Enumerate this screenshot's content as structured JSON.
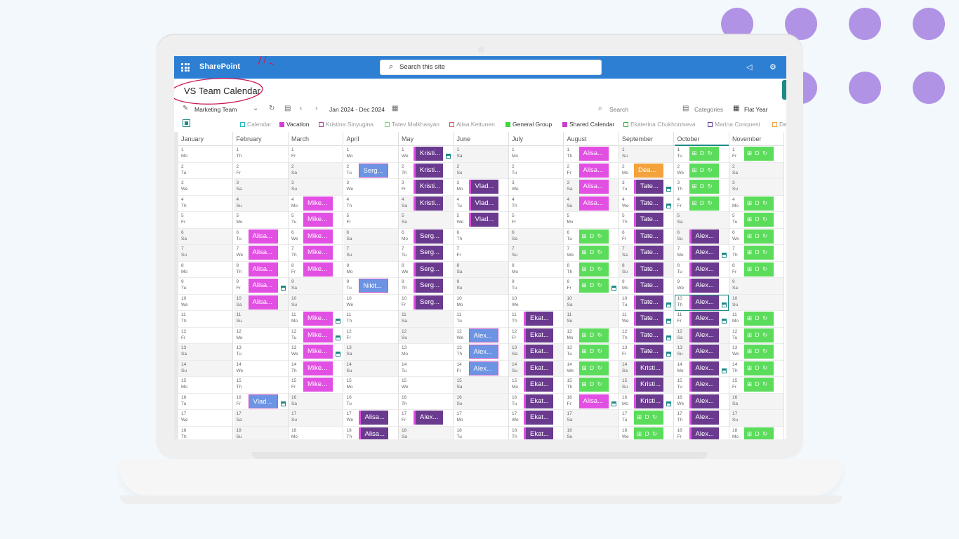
{
  "header": {
    "app_name": "SharePoint",
    "search_placeholder": "Search this site"
  },
  "page": {
    "title": "VS Team Calendar"
  },
  "toolbar": {
    "calendar_name": "Marketing Team",
    "date_range": "Jan 2024 - Dec 2024",
    "search_label": "Search",
    "categories_label": "Categories",
    "view_label": "Flat Year"
  },
  "legend": [
    {
      "label": "Calendar",
      "color": "#20b8c8",
      "filled": false
    },
    {
      "label": "Vacation",
      "color": "#d13fd6",
      "filled": true
    },
    {
      "label": "Kristina Sinyugina",
      "color": "#a540a8",
      "filled": false
    },
    {
      "label": "Tatev Malkhasyan",
      "color": "#7ad97a",
      "filled": false
    },
    {
      "label": "Alisa Kettunen",
      "color": "#d85a6a",
      "filled": false
    },
    {
      "label": "General Group",
      "color": "#3dd63d",
      "filled": true
    },
    {
      "label": "Shared Calendar",
      "color": "#c53fd0",
      "filled": true
    },
    {
      "label": "Ekaterina Chukhontseva",
      "color": "#3aaf3a",
      "filled": false
    },
    {
      "label": "Marina Conquest",
      "color": "#5a3fa0",
      "filled": false
    },
    {
      "label": "De",
      "color": "#f0a040",
      "filled": false
    }
  ],
  "months": [
    "January",
    "February",
    "March",
    "April",
    "May",
    "June",
    "July",
    "August",
    "September",
    "October",
    "November"
  ],
  "active_month": "October",
  "highlight_day": {
    "month": "October",
    "day": 10
  },
  "weekday_labels": [
    "Mo",
    "Tu",
    "We",
    "Th",
    "Fr",
    "Sa",
    "Su"
  ],
  "month_first_weekday": [
    0,
    3,
    4,
    0,
    2,
    5,
    0,
    3,
    6,
    1,
    4
  ],
  "colors": {
    "pink": "#e24fe3",
    "purple": "#6a3a8e",
    "blue": "#6d93e3",
    "green": "#5bdc5b",
    "orange": "#f4a23b"
  },
  "icon_text": "⊞ D ↻",
  "events": [
    {
      "m": 4,
      "d": 1,
      "label": "Kristi...",
      "c": "purple",
      "cal": true
    },
    {
      "m": 4,
      "d": 2,
      "label": "Kristi...",
      "c": "purple"
    },
    {
      "m": 4,
      "d": 3,
      "label": "Kristi...",
      "c": "purple"
    },
    {
      "m": 4,
      "d": 4,
      "label": "Kristi...",
      "c": "purple"
    },
    {
      "m": 4,
      "d": 6,
      "label": "Serg...",
      "c": "purple"
    },
    {
      "m": 4,
      "d": 7,
      "label": "Serg...",
      "c": "purple"
    },
    {
      "m": 4,
      "d": 8,
      "label": "Serg...",
      "c": "purple"
    },
    {
      "m": 4,
      "d": 9,
      "label": "Serg...",
      "c": "purple"
    },
    {
      "m": 4,
      "d": 10,
      "label": "Serg...",
      "c": "purple"
    },
    {
      "m": 4,
      "d": 17,
      "label": "Alex...",
      "c": "purple"
    },
    {
      "m": 3,
      "d": 2,
      "label": "Serg...",
      "c": "blue"
    },
    {
      "m": 3,
      "d": 9,
      "label": "Nikit...",
      "c": "blue"
    },
    {
      "m": 3,
      "d": 17,
      "label": "Alisa...",
      "c": "purple"
    },
    {
      "m": 3,
      "d": 18,
      "label": "Alisa...",
      "c": "purple"
    },
    {
      "m": 5,
      "d": 3,
      "label": "Vlad...",
      "c": "purple"
    },
    {
      "m": 5,
      "d": 4,
      "label": "Vlad...",
      "c": "purple"
    },
    {
      "m": 5,
      "d": 5,
      "label": "Vlad...",
      "c": "purple"
    },
    {
      "m": 5,
      "d": 12,
      "label": "Alex...",
      "c": "blue"
    },
    {
      "m": 5,
      "d": 13,
      "label": "Alex...",
      "c": "blue"
    },
    {
      "m": 5,
      "d": 14,
      "label": "Alex...",
      "c": "blue"
    },
    {
      "m": 6,
      "d": 11,
      "label": "Ekat...",
      "c": "purple"
    },
    {
      "m": 6,
      "d": 12,
      "label": "Ekat...",
      "c": "purple"
    },
    {
      "m": 6,
      "d": 13,
      "label": "Ekat...",
      "c": "purple"
    },
    {
      "m": 6,
      "d": 14,
      "label": "Ekat...",
      "c": "purple"
    },
    {
      "m": 6,
      "d": 15,
      "label": "Ekat...",
      "c": "purple"
    },
    {
      "m": 6,
      "d": 16,
      "label": "Ekat...",
      "c": "purple"
    },
    {
      "m": 6,
      "d": 17,
      "label": "Ekat...",
      "c": "purple"
    },
    {
      "m": 6,
      "d": 18,
      "label": "Ekat...",
      "c": "purple"
    },
    {
      "m": 1,
      "d": 6,
      "label": "Alisa...",
      "c": "pink"
    },
    {
      "m": 1,
      "d": 7,
      "label": "Alisa...",
      "c": "pink"
    },
    {
      "m": 1,
      "d": 8,
      "label": "Alisa...",
      "c": "pink"
    },
    {
      "m": 1,
      "d": 9,
      "label": "Alisa...",
      "c": "pink",
      "cal": true
    },
    {
      "m": 1,
      "d": 10,
      "label": "Alisa...",
      "c": "pink"
    },
    {
      "m": 1,
      "d": 16,
      "label": "Vlad...",
      "c": "blue",
      "cal": true
    },
    {
      "m": 2,
      "d": 4,
      "label": "Mike...",
      "c": "pink"
    },
    {
      "m": 2,
      "d": 5,
      "label": "Mike...",
      "c": "pink"
    },
    {
      "m": 2,
      "d": 6,
      "label": "Mike...",
      "c": "pink"
    },
    {
      "m": 2,
      "d": 7,
      "label": "Mike...",
      "c": "pink"
    },
    {
      "m": 2,
      "d": 8,
      "label": "Mike...",
      "c": "pink"
    },
    {
      "m": 2,
      "d": 11,
      "label": "Mike...",
      "c": "pink",
      "cal": true
    },
    {
      "m": 2,
      "d": 12,
      "label": "Mike...",
      "c": "pink",
      "cal": true
    },
    {
      "m": 2,
      "d": 13,
      "label": "Mike...",
      "c": "pink",
      "cal": true
    },
    {
      "m": 2,
      "d": 14,
      "label": "Mike...",
      "c": "pink"
    },
    {
      "m": 2,
      "d": 15,
      "label": "Mike...",
      "c": "pink"
    },
    {
      "m": 7,
      "d": 1,
      "label": "Alisa...",
      "c": "pink"
    },
    {
      "m": 7,
      "d": 2,
      "label": "Alisa...",
      "c": "pink"
    },
    {
      "m": 7,
      "d": 3,
      "label": "Alisa...",
      "c": "pink"
    },
    {
      "m": 7,
      "d": 4,
      "label": "Alisa...",
      "c": "pink"
    },
    {
      "m": 7,
      "d": 6,
      "icon": true,
      "c": "green"
    },
    {
      "m": 7,
      "d": 7,
      "icon": true,
      "c": "green"
    },
    {
      "m": 7,
      "d": 8,
      "icon": true,
      "c": "green"
    },
    {
      "m": 7,
      "d": 9,
      "icon": true,
      "c": "green",
      "cal": true
    },
    {
      "m": 7,
      "d": 12,
      "icon": true,
      "c": "green"
    },
    {
      "m": 7,
      "d": 13,
      "icon": true,
      "c": "green"
    },
    {
      "m": 7,
      "d": 14,
      "icon": true,
      "c": "green"
    },
    {
      "m": 7,
      "d": 15,
      "icon": true,
      "c": "green"
    },
    {
      "m": 7,
      "d": 16,
      "label": "Alisa...",
      "c": "pink",
      "cal": true
    },
    {
      "m": 8,
      "d": 2,
      "label": "Dea...",
      "c": "orange"
    },
    {
      "m": 8,
      "d": 3,
      "label": "Tate...",
      "c": "purple",
      "cal": true
    },
    {
      "m": 8,
      "d": 4,
      "label": "Tate...",
      "c": "purple",
      "cal": true
    },
    {
      "m": 8,
      "d": 5,
      "label": "Tate...",
      "c": "purple"
    },
    {
      "m": 8,
      "d": 6,
      "label": "Tate...",
      "c": "purple"
    },
    {
      "m": 8,
      "d": 7,
      "label": "Tate...",
      "c": "purple"
    },
    {
      "m": 8,
      "d": 8,
      "label": "Tate...",
      "c": "purple"
    },
    {
      "m": 8,
      "d": 9,
      "label": "Tate...",
      "c": "purple"
    },
    {
      "m": 8,
      "d": 10,
      "label": "Tate...",
      "c": "purple",
      "cal": true
    },
    {
      "m": 8,
      "d": 11,
      "label": "Tate...",
      "c": "purple",
      "cal": true
    },
    {
      "m": 8,
      "d": 12,
      "label": "Tate...",
      "c": "purple",
      "cal": true
    },
    {
      "m": 8,
      "d": 13,
      "label": "Tate...",
      "c": "purple",
      "cal": true
    },
    {
      "m": 8,
      "d": 14,
      "label": "Kristi...",
      "c": "purple"
    },
    {
      "m": 8,
      "d": 15,
      "label": "Kristi...",
      "c": "purple"
    },
    {
      "m": 8,
      "d": 16,
      "label": "Kristi...",
      "c": "purple",
      "cal": true
    },
    {
      "m": 8,
      "d": 17,
      "icon": true,
      "c": "green"
    },
    {
      "m": 8,
      "d": 18,
      "icon": true,
      "c": "green"
    },
    {
      "m": 9,
      "d": 1,
      "icon": true,
      "c": "green"
    },
    {
      "m": 9,
      "d": 2,
      "icon": true,
      "c": "green"
    },
    {
      "m": 9,
      "d": 3,
      "icon": true,
      "c": "green"
    },
    {
      "m": 9,
      "d": 4,
      "icon": true,
      "c": "green"
    },
    {
      "m": 9,
      "d": 6,
      "label": "Alex...",
      "c": "purple"
    },
    {
      "m": 9,
      "d": 7,
      "label": "Alex...",
      "c": "purple",
      "cal": true
    },
    {
      "m": 9,
      "d": 8,
      "label": "Alex...",
      "c": "purple"
    },
    {
      "m": 9,
      "d": 9,
      "label": "Alex...",
      "c": "purple"
    },
    {
      "m": 9,
      "d": 10,
      "label": "Alex...",
      "c": "purple",
      "cal": true
    },
    {
      "m": 9,
      "d": 11,
      "label": "Alex...",
      "c": "purple",
      "cal": true
    },
    {
      "m": 9,
      "d": 12,
      "label": "Alex...",
      "c": "purple"
    },
    {
      "m": 9,
      "d": 13,
      "label": "Alex...",
      "c": "purple"
    },
    {
      "m": 9,
      "d": 14,
      "label": "Alex...",
      "c": "purple",
      "cal": true
    },
    {
      "m": 9,
      "d": 15,
      "label": "Alex...",
      "c": "purple"
    },
    {
      "m": 9,
      "d": 16,
      "label": "Alex...",
      "c": "purple"
    },
    {
      "m": 9,
      "d": 17,
      "label": "Alex...",
      "c": "purple"
    },
    {
      "m": 9,
      "d": 18,
      "label": "Alex...",
      "c": "purple"
    },
    {
      "m": 10,
      "d": 1,
      "icon": true,
      "c": "green"
    },
    {
      "m": 10,
      "d": 4,
      "icon": true,
      "c": "green"
    },
    {
      "m": 10,
      "d": 5,
      "icon": true,
      "c": "green"
    },
    {
      "m": 10,
      "d": 6,
      "icon": true,
      "c": "green"
    },
    {
      "m": 10,
      "d": 7,
      "icon": true,
      "c": "green"
    },
    {
      "m": 10,
      "d": 8,
      "icon": true,
      "c": "green"
    },
    {
      "m": 10,
      "d": 11,
      "icon": true,
      "c": "green"
    },
    {
      "m": 10,
      "d": 12,
      "icon": true,
      "c": "green"
    },
    {
      "m": 10,
      "d": 13,
      "icon": true,
      "c": "green"
    },
    {
      "m": 10,
      "d": 14,
      "icon": true,
      "c": "green"
    },
    {
      "m": 10,
      "d": 15,
      "icon": true,
      "c": "green"
    },
    {
      "m": 10,
      "d": 18,
      "icon": true,
      "c": "green"
    }
  ]
}
